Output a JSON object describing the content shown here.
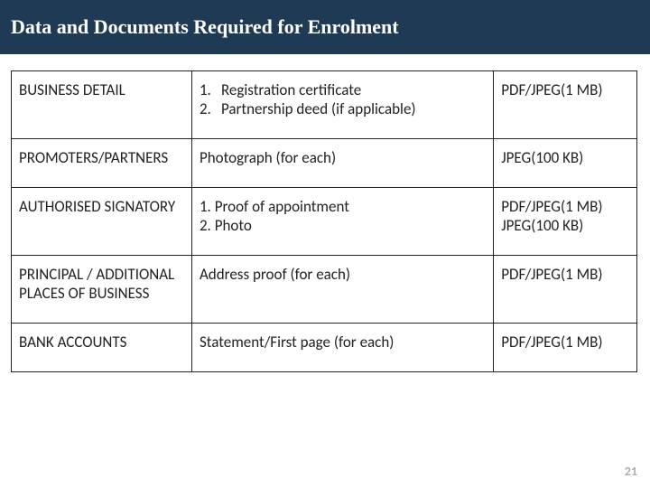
{
  "title": "Data and Documents Required for Enrolment",
  "rows": [
    {
      "category": "BUSINESS DETAIL",
      "docs_type": "ordered",
      "docs": [
        {
          "n": "1.",
          "t": "Registration certificate"
        },
        {
          "n": "2.",
          "t": "Partnership deed (if applicable)"
        }
      ],
      "format": "PDF/JPEG(1 MB)"
    },
    {
      "category": "PROMOTERS/PARTNERS",
      "docs_type": "plain",
      "docs_plain": "Photograph (for each)",
      "format": "JPEG(100 KB)"
    },
    {
      "category": "AUTHORISED SIGNATORY",
      "docs_type": "lines",
      "docs_lines": [
        "1. Proof of appointment",
        "2. Photo"
      ],
      "format_lines": [
        "PDF/JPEG(1 MB)",
        "JPEG(100 KB)"
      ]
    },
    {
      "category": "PRINCIPAL / ADDITIONAL PLACES OF BUSINESS",
      "docs_type": "plain",
      "docs_plain": "Address proof (for each)",
      "format": "PDF/JPEG(1 MB)"
    },
    {
      "category": "BANK ACCOUNTS",
      "docs_type": "plain",
      "docs_plain": "Statement/First page (for each)",
      "format": "PDF/JPEG(1 MB)"
    }
  ],
  "page_number": "21",
  "colors": {
    "title_bg": "#1f3a54",
    "title_fg": "#ffffff",
    "border": "#222222",
    "text": "#222222",
    "page_num": "#b0aea8"
  }
}
